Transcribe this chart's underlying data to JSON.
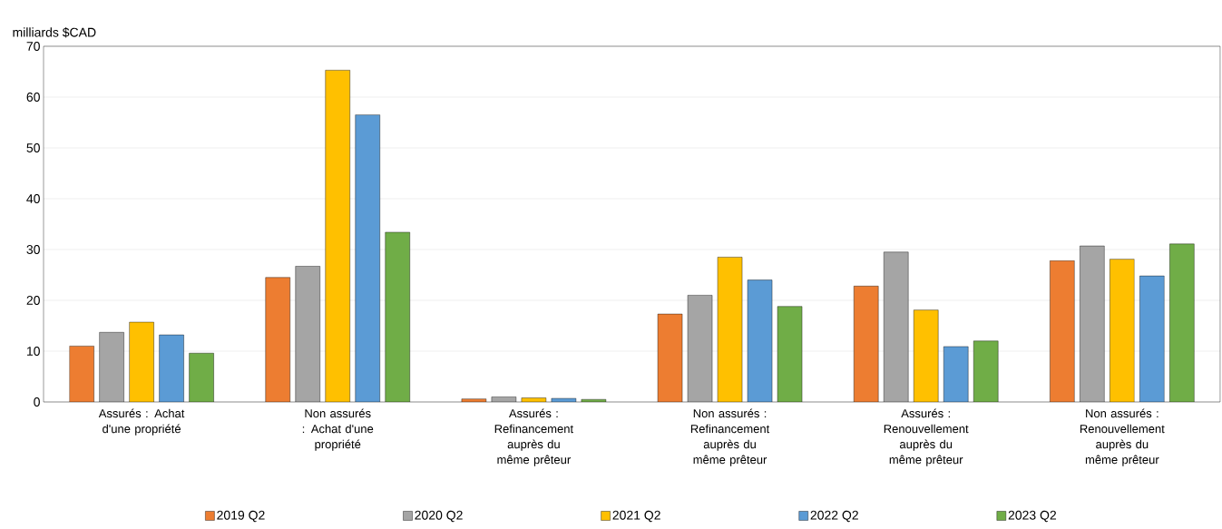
{
  "chart_data": {
    "type": "bar",
    "ylabel": "milliards $CAD",
    "categories": [
      "Assurés : Achat d'une propriété",
      "Non assurés : Achat d'une propriété",
      "Assurés : Refinancement auprès du même prêteur",
      "Non assurés : Refinancement auprès du même prêteur",
      "Assurés : Renouvellement auprès du même prêteur",
      "Non assurés : Renouvellement auprès du même prêteur"
    ],
    "series": [
      {
        "name": "2019 Q2",
        "color": "#ed7d31",
        "values": [
          11.0,
          24.5,
          0.6,
          17.3,
          22.8,
          27.8
        ]
      },
      {
        "name": "2020 Q2",
        "color": "#a5a5a5",
        "values": [
          13.7,
          26.7,
          1.0,
          21.0,
          29.5,
          30.7
        ]
      },
      {
        "name": "2021 Q2",
        "color": "#ffc000",
        "values": [
          15.7,
          65.3,
          0.8,
          28.5,
          18.1,
          28.1
        ]
      },
      {
        "name": "2022 Q2",
        "color": "#5b9bd5",
        "values": [
          13.2,
          56.5,
          0.7,
          24.0,
          10.9,
          24.8
        ]
      },
      {
        "name": "2023 Q2",
        "color": "#70ad47",
        "values": [
          9.6,
          33.4,
          0.5,
          18.8,
          12.0,
          31.1
        ]
      }
    ],
    "ylim": [
      0,
      70
    ],
    "yticks": [
      0,
      10,
      20,
      30,
      40,
      50,
      60,
      70
    ],
    "grid": "y",
    "legend": "bottom"
  }
}
